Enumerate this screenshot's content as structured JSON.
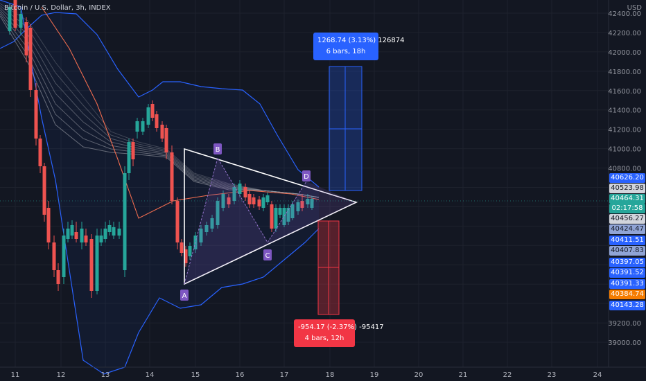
{
  "header": {
    "title": "Bitcoin / U.S. Dollar, 3h, INDEX",
    "currency": "USD"
  },
  "projection_up": {
    "line1": "1268.74 (3.13%) 126874",
    "line2": "6 bars, 18h"
  },
  "projection_down": {
    "line1": "-954.17 (-2.37%) -95417",
    "line2": "4 bars, 12h"
  },
  "colors": {
    "background": "#131722",
    "up": "#26a69a",
    "down": "#ef5350",
    "bollinger": "#2962ff",
    "ema": "#ef6c4f",
    "ribbon": "#9598a1",
    "triangle": "#ffffff",
    "pattern_fill": "#7e57c2",
    "last_price": "#26a69a"
  },
  "chart_data": {
    "type": "candlestick",
    "title": "Bitcoin / U.S. Dollar, 3h, INDEX",
    "x_ticks": [
      "11",
      "12",
      "13",
      "14",
      "15",
      "16",
      "17",
      "18",
      "19",
      "20",
      "21",
      "22",
      "23",
      "24"
    ],
    "y_ticks": [
      39000,
      39200,
      40800,
      41000,
      41200,
      41400,
      41600,
      41800,
      42000,
      42200,
      42400
    ],
    "ylim": [
      38900,
      42450
    ],
    "pattern_points": [
      {
        "label": "A"
      },
      {
        "label": "B"
      },
      {
        "label": "C"
      },
      {
        "label": "D"
      }
    ],
    "price_labels": [
      {
        "value": "40626.20",
        "style": "blue"
      },
      {
        "value": "40523.98",
        "style": "light"
      },
      {
        "value": "40464.31",
        "style": "green"
      },
      {
        "value": "02:17:58",
        "style": "green"
      },
      {
        "value": "40456.27",
        "style": "light"
      },
      {
        "value": "40424.47",
        "style": "pale"
      },
      {
        "value": "40411.51",
        "style": "blue"
      },
      {
        "value": "40407.83",
        "style": "pale"
      },
      {
        "value": "40397.05",
        "style": "blue"
      },
      {
        "value": "40391.52",
        "style": "blue"
      },
      {
        "value": "40391.33",
        "style": "blue"
      },
      {
        "value": "40384.74",
        "style": "orange"
      },
      {
        "value": "40143.28",
        "style": "blue"
      }
    ]
  }
}
